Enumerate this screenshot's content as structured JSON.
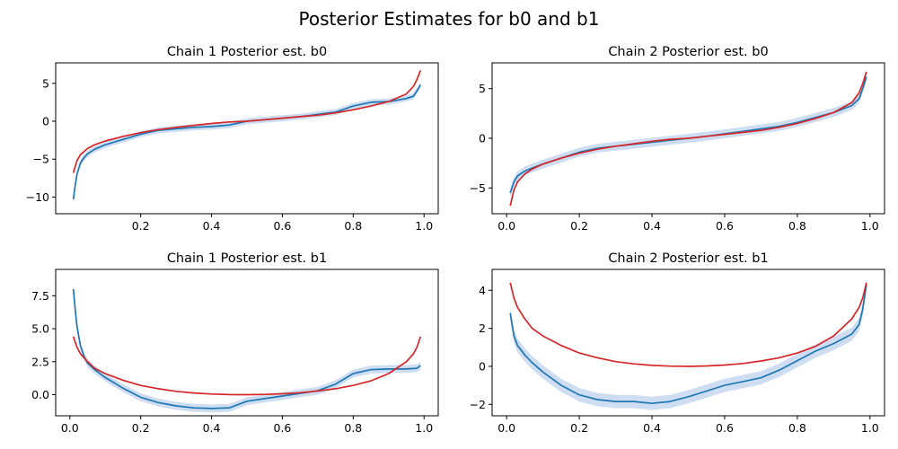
{
  "figure": {
    "suptitle": "Posterior Estimates for b0 and b1"
  },
  "colors": {
    "estimate": "#1f77b4",
    "band": "#aec7e8",
    "reference": "#d62728"
  },
  "chart_data": [
    {
      "type": "line",
      "title": "Chain 1 Posterior est. b0",
      "xlim": [
        -0.04,
        1.04
      ],
      "ylim": [
        -12.2,
        7.7
      ],
      "xticks": [
        0.2,
        0.4,
        0.6,
        0.8,
        1.0
      ],
      "xtick_labels": [
        "0.2",
        "0.4",
        "0.6",
        "0.8",
        "1.0"
      ],
      "yticks": [
        5,
        0,
        -5,
        -10
      ],
      "ytick_labels": [
        "5",
        "0",
        "−5",
        "−10"
      ],
      "band_width": 0.4,
      "series": [
        {
          "x": [
            0.01,
            0.015,
            0.02,
            0.03,
            0.04,
            0.05,
            0.07,
            0.1,
            0.15,
            0.2,
            0.25,
            0.3,
            0.35,
            0.4,
            0.45,
            0.5,
            0.55,
            0.6,
            0.65,
            0.7,
            0.75,
            0.8,
            0.85,
            0.9,
            0.95,
            0.97,
            0.98,
            0.99
          ],
          "y": [
            -10.3,
            -8.5,
            -7.0,
            -5.5,
            -4.8,
            -4.3,
            -3.7,
            -3.1,
            -2.4,
            -1.7,
            -1.2,
            -1.0,
            -0.8,
            -0.7,
            -0.5,
            0.0,
            0.2,
            0.4,
            0.6,
            0.9,
            1.2,
            2.0,
            2.5,
            2.6,
            3.0,
            3.3,
            4.0,
            4.8
          ]
        },
        {
          "x": [
            0.01,
            0.02,
            0.03,
            0.05,
            0.07,
            0.1,
            0.15,
            0.2,
            0.25,
            0.3,
            0.35,
            0.4,
            0.45,
            0.5,
            0.55,
            0.6,
            0.65,
            0.7,
            0.75,
            0.8,
            0.85,
            0.9,
            0.95,
            0.97,
            0.98,
            0.99
          ],
          "y": [
            -6.8,
            -5.2,
            -4.4,
            -3.6,
            -3.1,
            -2.6,
            -2.0,
            -1.5,
            -1.1,
            -0.8,
            -0.55,
            -0.3,
            -0.1,
            0.0,
            0.2,
            0.4,
            0.6,
            0.8,
            1.1,
            1.5,
            2.0,
            2.6,
            3.6,
            4.6,
            5.5,
            6.7
          ]
        }
      ]
    },
    {
      "type": "line",
      "title": "Chain 2 Posterior est. b0",
      "xlim": [
        -0.04,
        1.04
      ],
      "ylim": [
        -7.6,
        7.6
      ],
      "xticks": [
        0.0,
        0.2,
        0.4,
        0.6,
        0.8,
        1.0
      ],
      "xtick_labels": [
        "0.0",
        "0.2",
        "0.4",
        "0.6",
        "0.8",
        "1.0"
      ],
      "yticks": [
        5,
        0,
        -5
      ],
      "ytick_labels": [
        "5",
        "0",
        "−5"
      ],
      "band_width": 0.45,
      "series": [
        {
          "x": [
            0.01,
            0.02,
            0.03,
            0.05,
            0.07,
            0.1,
            0.15,
            0.2,
            0.25,
            0.3,
            0.35,
            0.4,
            0.45,
            0.5,
            0.55,
            0.6,
            0.65,
            0.7,
            0.75,
            0.8,
            0.85,
            0.9,
            0.95,
            0.97,
            0.98,
            0.99
          ],
          "y": [
            -5.5,
            -4.4,
            -3.8,
            -3.3,
            -3.0,
            -2.6,
            -2.0,
            -1.4,
            -1.0,
            -0.8,
            -0.6,
            -0.4,
            -0.2,
            0.0,
            0.2,
            0.45,
            0.7,
            0.95,
            1.2,
            1.6,
            2.1,
            2.6,
            3.3,
            4.0,
            5.0,
            6.2
          ]
        },
        {
          "x": [
            0.01,
            0.02,
            0.03,
            0.05,
            0.07,
            0.1,
            0.15,
            0.2,
            0.25,
            0.3,
            0.35,
            0.4,
            0.45,
            0.5,
            0.55,
            0.6,
            0.65,
            0.7,
            0.75,
            0.8,
            0.85,
            0.9,
            0.95,
            0.97,
            0.98,
            0.99
          ],
          "y": [
            -6.8,
            -5.2,
            -4.4,
            -3.6,
            -3.1,
            -2.6,
            -2.0,
            -1.5,
            -1.1,
            -0.8,
            -0.55,
            -0.3,
            -0.1,
            0.0,
            0.2,
            0.4,
            0.6,
            0.8,
            1.1,
            1.5,
            2.0,
            2.6,
            3.6,
            4.6,
            5.5,
            6.7
          ]
        }
      ]
    },
    {
      "type": "line",
      "title": "Chain 1 Posterior est. b1",
      "xlim": [
        -0.04,
        1.04
      ],
      "ylim": [
        -1.6,
        9.5
      ],
      "xticks": [
        0.0,
        0.2,
        0.4,
        0.6,
        0.8,
        1.0
      ],
      "xtick_labels": [
        "0.0",
        "0.2",
        "0.4",
        "0.6",
        "0.8",
        "1.0"
      ],
      "yticks": [
        7.5,
        5.0,
        2.5,
        0.0
      ],
      "ytick_labels": [
        "7.5",
        "5.0",
        "2.5",
        "0.0"
      ],
      "band_width": 0.3,
      "series": [
        {
          "x": [
            0.01,
            0.015,
            0.02,
            0.03,
            0.04,
            0.05,
            0.07,
            0.1,
            0.15,
            0.2,
            0.25,
            0.3,
            0.35,
            0.4,
            0.45,
            0.5,
            0.55,
            0.6,
            0.65,
            0.7,
            0.75,
            0.8,
            0.85,
            0.9,
            0.95,
            0.98,
            0.99
          ],
          "y": [
            8.0,
            6.5,
            5.2,
            3.7,
            2.9,
            2.4,
            1.9,
            1.3,
            0.5,
            -0.2,
            -0.6,
            -0.85,
            -1.0,
            -1.05,
            -1.0,
            -0.5,
            -0.3,
            -0.1,
            0.1,
            0.3,
            0.8,
            1.6,
            1.9,
            1.95,
            1.95,
            2.0,
            2.2
          ]
        },
        {
          "x": [
            0.01,
            0.02,
            0.03,
            0.05,
            0.07,
            0.1,
            0.15,
            0.2,
            0.25,
            0.3,
            0.35,
            0.4,
            0.45,
            0.5,
            0.55,
            0.6,
            0.65,
            0.7,
            0.75,
            0.8,
            0.85,
            0.9,
            0.95,
            0.97,
            0.98,
            0.99
          ],
          "y": [
            4.4,
            3.6,
            3.1,
            2.5,
            2.0,
            1.6,
            1.1,
            0.7,
            0.45,
            0.25,
            0.13,
            0.05,
            0.01,
            0.0,
            0.02,
            0.07,
            0.15,
            0.28,
            0.45,
            0.7,
            1.05,
            1.6,
            2.5,
            3.1,
            3.6,
            4.4
          ]
        }
      ]
    },
    {
      "type": "line",
      "title": "Chain 2 Posterior est. b1",
      "xlim": [
        -0.04,
        1.04
      ],
      "ylim": [
        -2.6,
        5.1
      ],
      "xticks": [
        0.0,
        0.2,
        0.4,
        0.6,
        0.8,
        1.0
      ],
      "xtick_labels": [
        "0.0",
        "0.2",
        "0.4",
        "0.6",
        "0.8",
        "1.0"
      ],
      "yticks": [
        4,
        2,
        0,
        -2
      ],
      "ytick_labels": [
        "4",
        "2",
        "0",
        "−2"
      ],
      "band_width": 0.35,
      "series": [
        {
          "x": [
            0.01,
            0.02,
            0.03,
            0.05,
            0.07,
            0.1,
            0.15,
            0.2,
            0.25,
            0.3,
            0.35,
            0.4,
            0.45,
            0.5,
            0.55,
            0.6,
            0.65,
            0.7,
            0.75,
            0.8,
            0.85,
            0.9,
            0.95,
            0.97,
            0.98,
            0.99
          ],
          "y": [
            2.8,
            1.6,
            1.1,
            0.6,
            0.2,
            -0.3,
            -1.0,
            -1.5,
            -1.75,
            -1.85,
            -1.85,
            -1.95,
            -1.85,
            -1.6,
            -1.3,
            -1.0,
            -0.8,
            -0.6,
            -0.2,
            0.3,
            0.8,
            1.2,
            1.7,
            2.2,
            3.0,
            4.3
          ]
        },
        {
          "x": [
            0.01,
            0.02,
            0.03,
            0.05,
            0.07,
            0.1,
            0.15,
            0.2,
            0.25,
            0.3,
            0.35,
            0.4,
            0.45,
            0.5,
            0.55,
            0.6,
            0.65,
            0.7,
            0.75,
            0.8,
            0.85,
            0.9,
            0.95,
            0.97,
            0.98,
            0.99
          ],
          "y": [
            4.4,
            3.6,
            3.1,
            2.5,
            2.0,
            1.6,
            1.1,
            0.7,
            0.45,
            0.25,
            0.13,
            0.05,
            0.01,
            0.0,
            0.02,
            0.07,
            0.15,
            0.28,
            0.45,
            0.7,
            1.05,
            1.6,
            2.5,
            3.1,
            3.6,
            4.4
          ]
        }
      ]
    }
  ]
}
